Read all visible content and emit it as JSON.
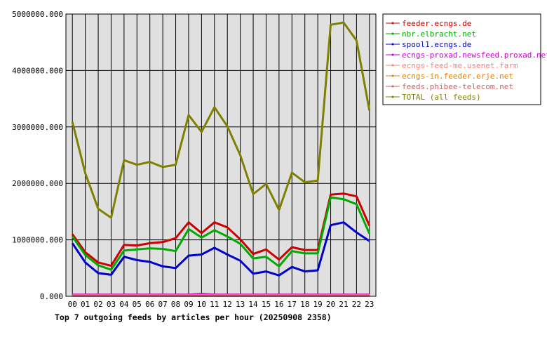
{
  "chart_data": {
    "type": "line",
    "title": "Top 7 outgoing feeds by articles per hour (20250908 2358)",
    "x": [
      "00",
      "01",
      "02",
      "03",
      "04",
      "05",
      "06",
      "07",
      "08",
      "09",
      "10",
      "11",
      "12",
      "13",
      "14",
      "15",
      "16",
      "17",
      "18",
      "19",
      "20",
      "21",
      "22",
      "23"
    ],
    "ylim": [
      0,
      5000000
    ],
    "yticks": [
      "0.000",
      "1000000.000",
      "2000000.000",
      "3000000.000",
      "4000000.000",
      "5000000.000"
    ],
    "grid": true,
    "legend_position": "right",
    "series": [
      {
        "name": "feeder.ecngs.de",
        "color": "#cc0000",
        "values": [
          1100000,
          780000,
          600000,
          540000,
          910000,
          900000,
          940000,
          960000,
          1030000,
          1310000,
          1120000,
          1310000,
          1220000,
          1010000,
          750000,
          830000,
          650000,
          870000,
          820000,
          820000,
          1800000,
          1820000,
          1770000,
          1250000
        ]
      },
      {
        "name": "nbr.elbracht.net",
        "color": "#00aa00",
        "values": [
          1060000,
          730000,
          550000,
          470000,
          810000,
          830000,
          850000,
          840000,
          800000,
          1190000,
          1040000,
          1170000,
          1060000,
          930000,
          670000,
          700000,
          530000,
          800000,
          760000,
          760000,
          1750000,
          1720000,
          1630000,
          1110000
        ]
      },
      {
        "name": "spool1.ecngs.de",
        "color": "#0000cc",
        "values": [
          940000,
          600000,
          410000,
          380000,
          700000,
          640000,
          610000,
          530000,
          500000,
          720000,
          740000,
          860000,
          740000,
          630000,
          400000,
          440000,
          370000,
          520000,
          440000,
          460000,
          1260000,
          1310000,
          1130000,
          980000
        ]
      },
      {
        "name": "ecngs-proxad.newsfeed.proxad.net",
        "color": "#cc00cc",
        "values": [
          30000,
          30000,
          30000,
          30000,
          30000,
          30000,
          30000,
          30000,
          30000,
          30000,
          40000,
          30000,
          30000,
          30000,
          30000,
          30000,
          30000,
          30000,
          30000,
          30000,
          30000,
          30000,
          30000,
          30000
        ]
      },
      {
        "name": "ecngs-feed-me.usenet.farm",
        "color": "#ff8080",
        "values": [
          20000,
          20000,
          20000,
          20000,
          20000,
          20000,
          20000,
          20000,
          20000,
          20000,
          20000,
          20000,
          20000,
          20000,
          20000,
          20000,
          20000,
          20000,
          20000,
          20000,
          20000,
          20000,
          20000,
          20000
        ]
      },
      {
        "name": "ecngs-in.feeder.erje.net",
        "color": "#e08000",
        "values": [
          15000,
          15000,
          15000,
          15000,
          15000,
          15000,
          15000,
          15000,
          15000,
          15000,
          15000,
          15000,
          15000,
          15000,
          15000,
          15000,
          15000,
          15000,
          15000,
          15000,
          15000,
          15000,
          15000,
          15000
        ]
      },
      {
        "name": "feeds.phibee-telecom.net",
        "color": "#c86464",
        "values": [
          10000,
          10000,
          10000,
          10000,
          10000,
          10000,
          10000,
          10000,
          10000,
          10000,
          10000,
          10000,
          10000,
          10000,
          10000,
          10000,
          10000,
          10000,
          10000,
          10000,
          10000,
          10000,
          10000,
          10000
        ]
      },
      {
        "name": "TOTAL (all feeds)",
        "color": "#808000",
        "values": [
          3090000,
          2180000,
          1550000,
          1390000,
          2410000,
          2330000,
          2380000,
          2290000,
          2330000,
          3210000,
          2910000,
          3350000,
          3010000,
          2500000,
          1810000,
          1990000,
          1530000,
          2190000,
          2020000,
          2050000,
          4810000,
          4850000,
          4530000,
          3290000
        ]
      }
    ]
  }
}
